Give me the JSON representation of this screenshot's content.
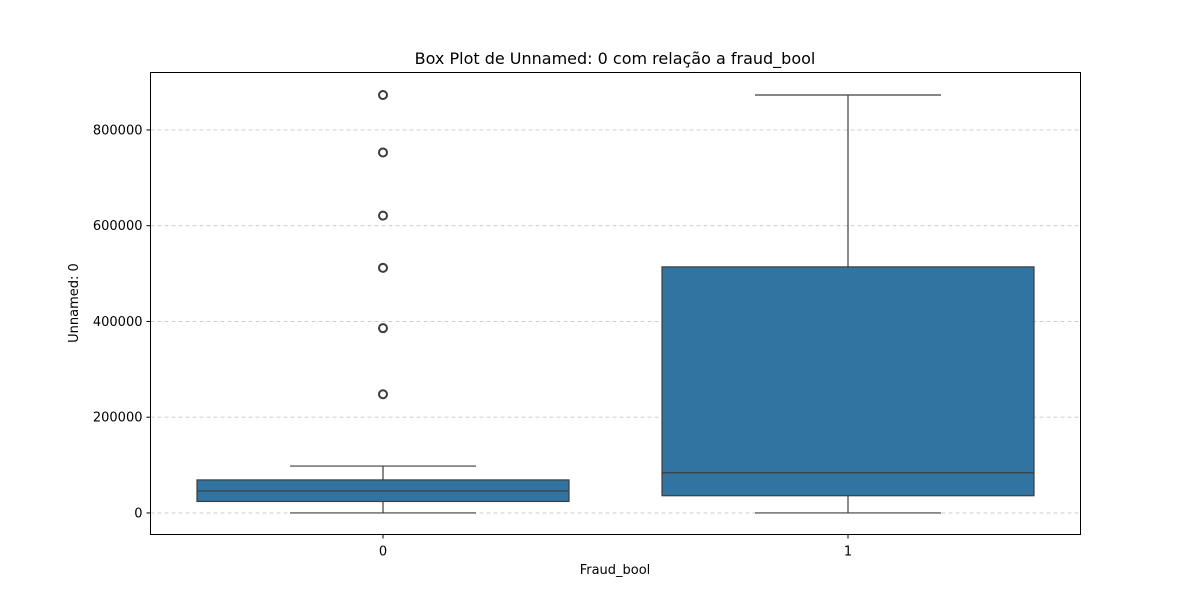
{
  "chart_data": {
    "type": "box",
    "title": "Box Plot de Unnamed: 0 com relação a fraud_bool",
    "xlabel": "Fraud_bool",
    "ylabel": "Unnamed: 0",
    "categories": [
      "0",
      "1"
    ],
    "ylim": [
      -45000,
      920000
    ],
    "yticks": [
      0,
      200000,
      400000,
      600000,
      800000
    ],
    "ytick_labels": [
      "0",
      "200000",
      "400000",
      "600000",
      "800000"
    ],
    "grid": "y-dashed",
    "box_color": "#3274a1",
    "line_color": "#3d3d3d",
    "boxes": [
      {
        "category": "0",
        "whisker_low": 0,
        "q1": 24000,
        "median": 46000,
        "q3": 69000,
        "whisker_high": 98000,
        "outliers": [
          248000,
          386000,
          512000,
          621000,
          753000,
          873000
        ]
      },
      {
        "category": "1",
        "whisker_low": 0,
        "q1": 36000,
        "median": 84000,
        "q3": 514000,
        "whisker_high": 873000,
        "outliers": []
      }
    ]
  }
}
